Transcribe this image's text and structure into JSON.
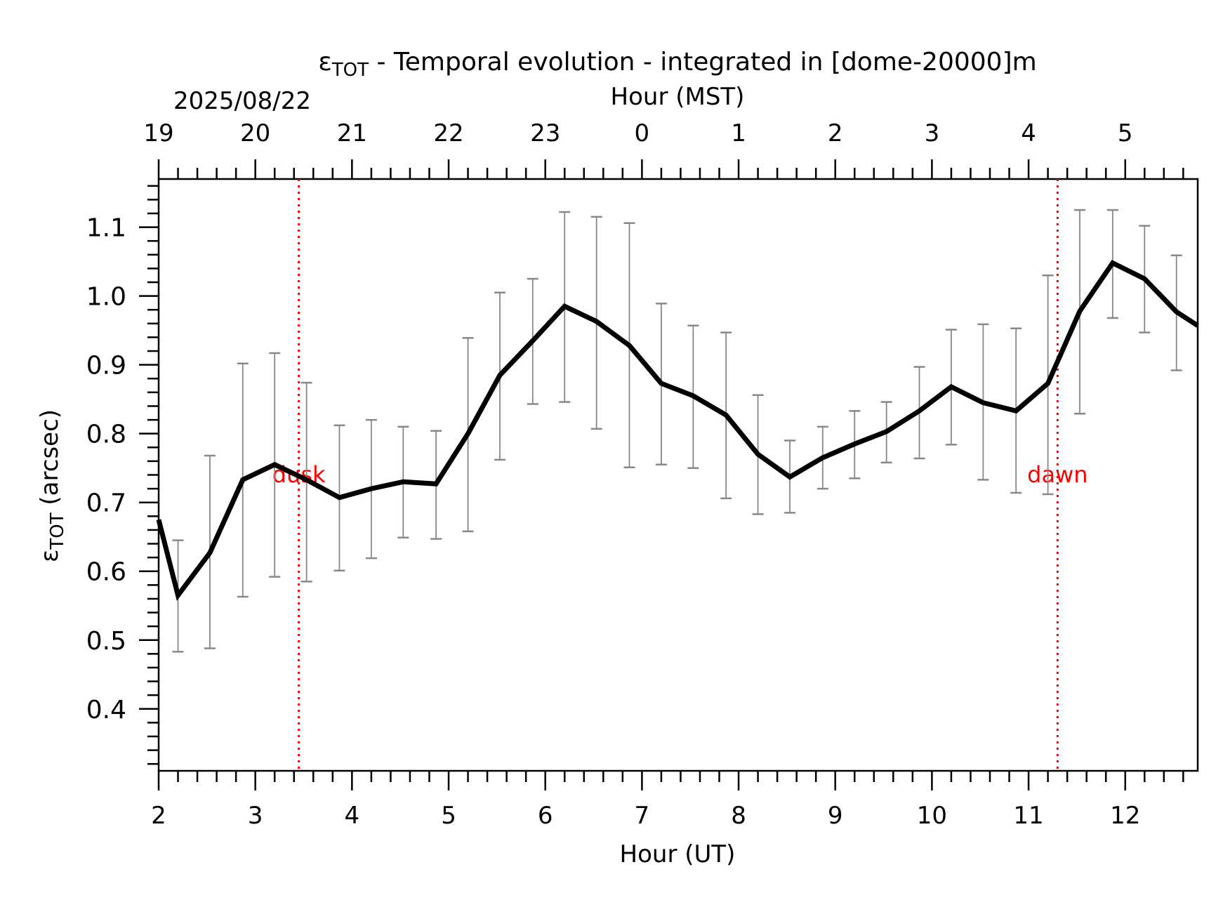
{
  "chart_data": {
    "type": "line",
    "title": {
      "prefix": "ε",
      "sub": "TOT",
      "text": " - Temporal evolution - integrated in [dome-20000]m"
    },
    "date": "2025/08/22",
    "xlabel": "Hour (UT)",
    "xlabel_top": "Hour (MST)",
    "ylabel": {
      "prefix": "ε",
      "sub": "TOT",
      "suffix": " (arcsec)"
    },
    "xlim": [
      2.0,
      12.75
    ],
    "ylim": [
      0.31,
      1.17
    ],
    "xticks": [
      2,
      3,
      4,
      5,
      6,
      7,
      8,
      9,
      10,
      11,
      12
    ],
    "xticks_top": [
      {
        "ut": 2.0,
        "label": "19"
      },
      {
        "ut": 3.0,
        "label": "20"
      },
      {
        "ut": 4.0,
        "label": "21"
      },
      {
        "ut": 5.0,
        "label": "22"
      },
      {
        "ut": 6.0,
        "label": "23"
      },
      {
        "ut": 7.0,
        "label": "0"
      },
      {
        "ut": 8.0,
        "label": "1"
      },
      {
        "ut": 9.0,
        "label": "2"
      },
      {
        "ut": 10.0,
        "label": "3"
      },
      {
        "ut": 11.0,
        "label": "4"
      },
      {
        "ut": 12.0,
        "label": "5"
      }
    ],
    "yticks": [
      "0.4",
      "0.5",
      "0.6",
      "0.7",
      "0.8",
      "0.9",
      "1.0",
      "1.1"
    ],
    "series": [
      {
        "color": "#000000",
        "errorbar_color": "#888888",
        "x": [
          2.0,
          2.2,
          2.53,
          2.87,
          3.2,
          3.53,
          3.87,
          4.2,
          4.53,
          4.87,
          5.2,
          5.53,
          5.87,
          6.2,
          6.53,
          6.87,
          7.2,
          7.53,
          7.87,
          8.2,
          8.53,
          8.87,
          9.2,
          9.53,
          9.87,
          10.2,
          10.53,
          10.87,
          11.2,
          11.53,
          11.87,
          12.2,
          12.53,
          12.75
        ],
        "y": [
          0.675,
          0.565,
          0.627,
          0.733,
          0.755,
          0.733,
          0.707,
          0.72,
          0.73,
          0.727,
          0.8,
          0.885,
          0.935,
          0.985,
          0.963,
          0.928,
          0.873,
          0.855,
          0.827,
          0.77,
          0.737,
          0.765,
          0.785,
          0.803,
          0.833,
          0.868,
          0.845,
          0.833,
          0.873,
          0.978,
          1.048,
          1.025,
          0.977,
          0.957
        ],
        "err_low": [
          null,
          0.483,
          0.488,
          0.563,
          0.592,
          0.585,
          0.601,
          0.619,
          0.649,
          0.647,
          0.658,
          0.762,
          0.843,
          0.846,
          0.807,
          0.751,
          0.755,
          0.75,
          0.706,
          0.683,
          0.685,
          0.72,
          0.735,
          0.758,
          0.764,
          0.784,
          0.733,
          0.714,
          0.712,
          0.829,
          0.968,
          0.947,
          0.892,
          null
        ],
        "err_high": [
          null,
          0.645,
          0.768,
          0.902,
          0.917,
          0.874,
          0.812,
          0.82,
          0.81,
          0.804,
          0.939,
          1.005,
          1.025,
          1.122,
          1.115,
          1.106,
          0.989,
          0.957,
          0.947,
          0.856,
          0.79,
          0.81,
          0.833,
          0.846,
          0.897,
          0.951,
          0.959,
          0.953,
          1.03,
          1.125,
          1.125,
          1.102,
          1.059,
          null
        ]
      }
    ],
    "events": [
      {
        "label": "dusk",
        "x": 3.45,
        "color": "#ff0000"
      },
      {
        "label": "dawn",
        "x": 11.3,
        "color": "#ff0000"
      }
    ],
    "grid": false
  }
}
